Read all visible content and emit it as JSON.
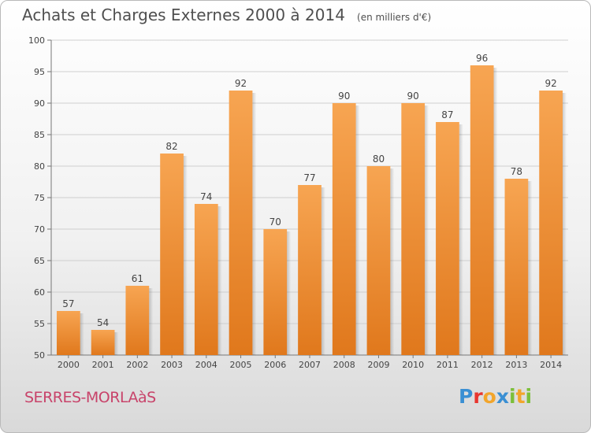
{
  "header": {
    "title": "Achats et Charges Externes 2000 à 2014",
    "unit": "(en milliers d'€)"
  },
  "commune": "SERRES-MORLAàS",
  "logo": {
    "text": "Proxiti",
    "letters": [
      {
        "ch": "P",
        "color": "#3a8fd3"
      },
      {
        "ch": "r",
        "color": "#e8362f"
      },
      {
        "ch": "o",
        "color": "#f2a52b"
      },
      {
        "ch": "x",
        "color": "#3a8fd3"
      },
      {
        "ch": "i",
        "color": "#7cbf3a"
      },
      {
        "ch": "t",
        "color": "#f2a52b"
      },
      {
        "ch": "i",
        "color": "#7cbf3a"
      }
    ]
  },
  "chart_data": {
    "type": "bar",
    "categories": [
      "2000",
      "2001",
      "2002",
      "2003",
      "2004",
      "2005",
      "2006",
      "2007",
      "2008",
      "2009",
      "2010",
      "2011",
      "2012",
      "2013",
      "2014"
    ],
    "values": [
      57,
      54,
      61,
      82,
      74,
      92,
      70,
      77,
      90,
      80,
      90,
      87,
      96,
      78,
      92
    ],
    "ylim": [
      50,
      100
    ],
    "yticks": [
      50,
      55,
      60,
      65,
      70,
      75,
      80,
      85,
      90,
      95,
      100
    ],
    "grid": true,
    "bar_color": "#e8892f",
    "bar_color_light": "#f7a552",
    "grid_color": "#cfcfcf"
  }
}
